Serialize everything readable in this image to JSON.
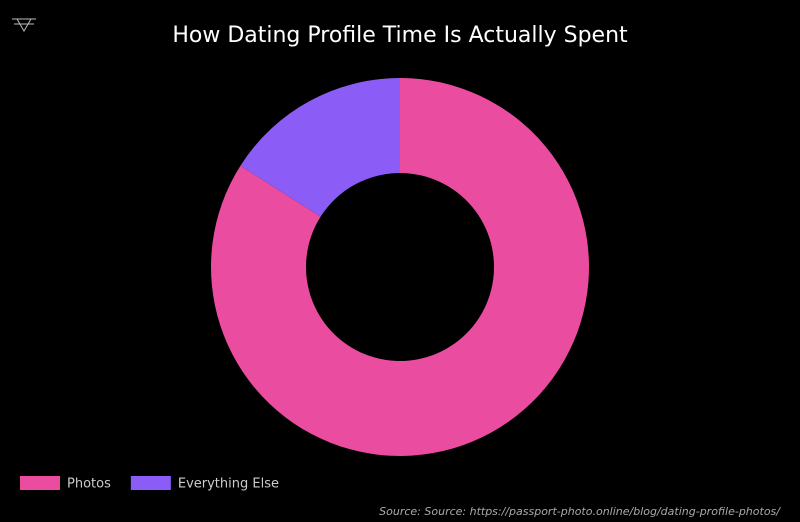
{
  "chart_data": {
    "type": "donut",
    "title": "How Dating Profile Time Is Actually Spent",
    "categories": [
      "Photos",
      "Everything Else"
    ],
    "values": [
      84,
      16
    ],
    "colors": [
      "#ea4c9f",
      "#8b5cf6"
    ],
    "legend": "bottom-left",
    "source": "Source: Source: https://passport-photo.online/blog/dating-profile-photos/"
  }
}
